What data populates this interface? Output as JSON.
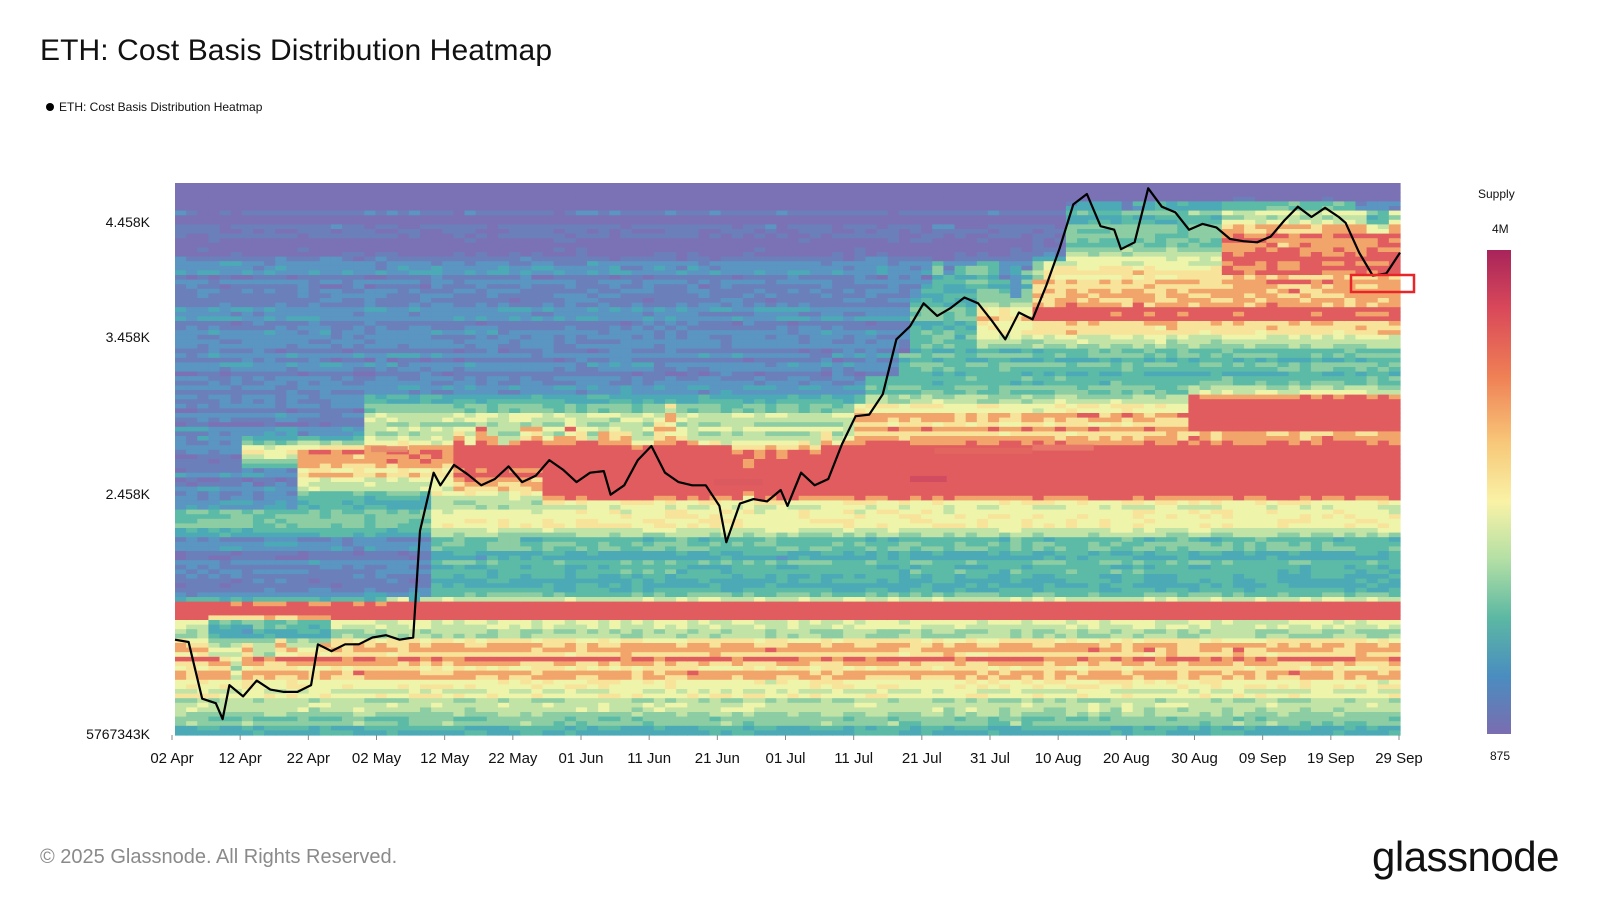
{
  "title": "ETH: Cost Basis Distribution Heatmap",
  "legend": {
    "label": "ETH: Cost Basis Distribution Heatmap"
  },
  "colorbar": {
    "title": "Supply",
    "max_label": "4M",
    "min_label": "875",
    "colors": [
      "#a8245a",
      "#d9485a",
      "#ef7f55",
      "#f8c879",
      "#f9f2a6",
      "#b3dfa5",
      "#5cb8a3",
      "#4a8dc0",
      "#7a6db0"
    ]
  },
  "footer": {
    "copyright": "© 2025 Glassnode. All Rights Reserved.",
    "logo": "glassnode"
  },
  "chart_data": {
    "type": "heatmap",
    "title": "ETH: Cost Basis Distribution Heatmap",
    "x_ticks": [
      "02 Apr",
      "12 Apr",
      "22 Apr",
      "02 May",
      "12 May",
      "22 May",
      "01 Jun",
      "11 Jun",
      "21 Jun",
      "01 Jul",
      "11 Jul",
      "21 Jul",
      "31 Jul",
      "10 Aug",
      "20 Aug",
      "30 Aug",
      "09 Sep",
      "19 Sep",
      "29 Sep"
    ],
    "y_ticks": [
      "4.458K",
      "3.458K",
      "2.458K",
      "5767343K"
    ],
    "price_series": {
      "name": "ETH: Cost Basis Distribution Heatmap",
      "points": [
        [
          "2025-04-02",
          1820
        ],
        [
          "2025-04-04",
          1810
        ],
        [
          "2025-04-06",
          1560
        ],
        [
          "2025-04-08",
          1540
        ],
        [
          "2025-04-09",
          1470
        ],
        [
          "2025-04-10",
          1620
        ],
        [
          "2025-04-12",
          1570
        ],
        [
          "2025-04-14",
          1640
        ],
        [
          "2025-04-16",
          1600
        ],
        [
          "2025-04-18",
          1590
        ],
        [
          "2025-04-20",
          1590
        ],
        [
          "2025-04-22",
          1620
        ],
        [
          "2025-04-23",
          1800
        ],
        [
          "2025-04-25",
          1770
        ],
        [
          "2025-04-27",
          1800
        ],
        [
          "2025-04-29",
          1800
        ],
        [
          "2025-05-01",
          1830
        ],
        [
          "2025-05-03",
          1840
        ],
        [
          "2025-05-05",
          1820
        ],
        [
          "2025-05-07",
          1830
        ],
        [
          "2025-05-08",
          2300
        ],
        [
          "2025-05-10",
          2600
        ],
        [
          "2025-05-11",
          2520
        ],
        [
          "2025-05-13",
          2650
        ],
        [
          "2025-05-15",
          2590
        ],
        [
          "2025-05-17",
          2520
        ],
        [
          "2025-05-19",
          2560
        ],
        [
          "2025-05-21",
          2640
        ],
        [
          "2025-05-23",
          2540
        ],
        [
          "2025-05-25",
          2580
        ],
        [
          "2025-05-27",
          2680
        ],
        [
          "2025-05-29",
          2620
        ],
        [
          "2025-05-31",
          2540
        ],
        [
          "2025-06-02",
          2600
        ],
        [
          "2025-06-04",
          2610
        ],
        [
          "2025-06-05",
          2460
        ],
        [
          "2025-06-07",
          2520
        ],
        [
          "2025-06-09",
          2680
        ],
        [
          "2025-06-11",
          2770
        ],
        [
          "2025-06-13",
          2600
        ],
        [
          "2025-06-15",
          2540
        ],
        [
          "2025-06-17",
          2520
        ],
        [
          "2025-06-19",
          2520
        ],
        [
          "2025-06-21",
          2410
        ],
        [
          "2025-06-22",
          2250
        ],
        [
          "2025-06-24",
          2420
        ],
        [
          "2025-06-26",
          2440
        ],
        [
          "2025-06-28",
          2430
        ],
        [
          "2025-06-30",
          2490
        ],
        [
          "2025-07-01",
          2410
        ],
        [
          "2025-07-03",
          2600
        ],
        [
          "2025-07-05",
          2520
        ],
        [
          "2025-07-07",
          2560
        ],
        [
          "2025-07-09",
          2780
        ],
        [
          "2025-07-11",
          2960
        ],
        [
          "2025-07-13",
          2970
        ],
        [
          "2025-07-15",
          3100
        ],
        [
          "2025-07-17",
          3450
        ],
        [
          "2025-07-19",
          3560
        ],
        [
          "2025-07-21",
          3760
        ],
        [
          "2025-07-23",
          3650
        ],
        [
          "2025-07-25",
          3720
        ],
        [
          "2025-07-27",
          3810
        ],
        [
          "2025-07-29",
          3760
        ],
        [
          "2025-07-31",
          3610
        ],
        [
          "2025-08-02",
          3450
        ],
        [
          "2025-08-04",
          3680
        ],
        [
          "2025-08-06",
          3620
        ],
        [
          "2025-08-08",
          3910
        ],
        [
          "2025-08-10",
          4240
        ],
        [
          "2025-08-12",
          4620
        ],
        [
          "2025-08-14",
          4710
        ],
        [
          "2025-08-16",
          4430
        ],
        [
          "2025-08-18",
          4400
        ],
        [
          "2025-08-19",
          4230
        ],
        [
          "2025-08-21",
          4290
        ],
        [
          "2025-08-23",
          4760
        ],
        [
          "2025-08-25",
          4600
        ],
        [
          "2025-08-27",
          4550
        ],
        [
          "2025-08-29",
          4400
        ],
        [
          "2025-08-31",
          4450
        ],
        [
          "2025-09-02",
          4420
        ],
        [
          "2025-09-04",
          4320
        ],
        [
          "2025-09-06",
          4300
        ],
        [
          "2025-09-08",
          4290
        ],
        [
          "2025-09-10",
          4340
        ],
        [
          "2025-09-12",
          4480
        ],
        [
          "2025-09-14",
          4600
        ],
        [
          "2025-09-16",
          4510
        ],
        [
          "2025-09-18",
          4590
        ],
        [
          "2025-09-20",
          4510
        ],
        [
          "2025-09-21",
          4460
        ],
        [
          "2025-09-23",
          4200
        ],
        [
          "2025-09-25",
          4000
        ],
        [
          "2025-09-27",
          4020
        ],
        [
          "2025-09-29",
          4200
        ]
      ]
    }
  }
}
